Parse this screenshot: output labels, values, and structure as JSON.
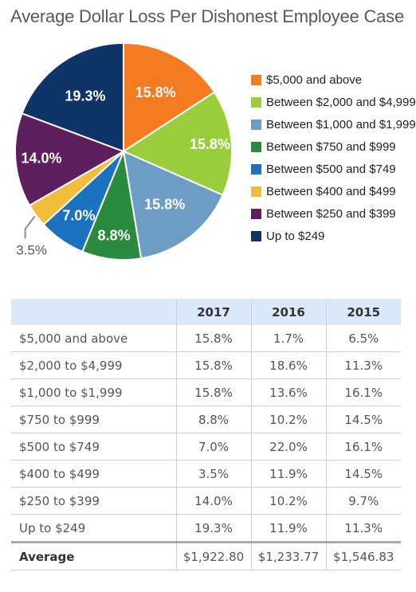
{
  "chart_data": {
    "type": "pie",
    "title": "Average Dollar Loss Per Dishonest Employee Case",
    "slices": [
      {
        "label": "$5,000 and above",
        "value": 15.8,
        "display": "15.8%",
        "color": "#f47b20"
      },
      {
        "label": "Between $2,000 and $4,999",
        "value": 15.8,
        "display": "15.8%",
        "color": "#9acd3c"
      },
      {
        "label": "Between $1,000 and $1,999",
        "value": 15.8,
        "display": "15.8%",
        "color": "#6d9dc5"
      },
      {
        "label": "Between $750 and $999",
        "value": 8.8,
        "display": "8.8%",
        "color": "#2a8a3e"
      },
      {
        "label": "Between $500 and $749",
        "value": 7.0,
        "display": "7.0%",
        "color": "#1b73c0"
      },
      {
        "label": "Between $400 and $499",
        "value": 3.5,
        "display": "3.5%",
        "color": "#f0be3c"
      },
      {
        "label": "Between $250 and $399",
        "value": 14.0,
        "display": "14.0%",
        "color": "#5e1f5f"
      },
      {
        "label": "Up to $249",
        "value": 19.3,
        "display": "19.3%",
        "color": "#0f3468"
      }
    ]
  },
  "table": {
    "columns": [
      "",
      "2017",
      "2016",
      "2015"
    ],
    "rows": [
      [
        "$5,000 and above",
        "15.8%",
        "1.7%",
        "6.5%"
      ],
      [
        "$2,000 to $4,999",
        "15.8%",
        "18.6%",
        "11.3%"
      ],
      [
        "$1,000 to $1,999",
        "15.8%",
        "13.6%",
        "16.1%"
      ],
      [
        "$750 to $999",
        "8.8%",
        "10.2%",
        "14.5%"
      ],
      [
        "$500 to $749",
        "7.0%",
        "22.0%",
        "16.1%"
      ],
      [
        "$400 to $499",
        "3.5%",
        "11.9%",
        "14.5%"
      ],
      [
        "$250 to $399",
        "14.0%",
        "10.2%",
        "9.7%"
      ],
      [
        "Up to $249",
        "19.3%",
        "11.9%",
        "11.3%"
      ]
    ],
    "footer": [
      "Average",
      "$1,922.80",
      "$1,233.77",
      "$1,546.83"
    ]
  }
}
